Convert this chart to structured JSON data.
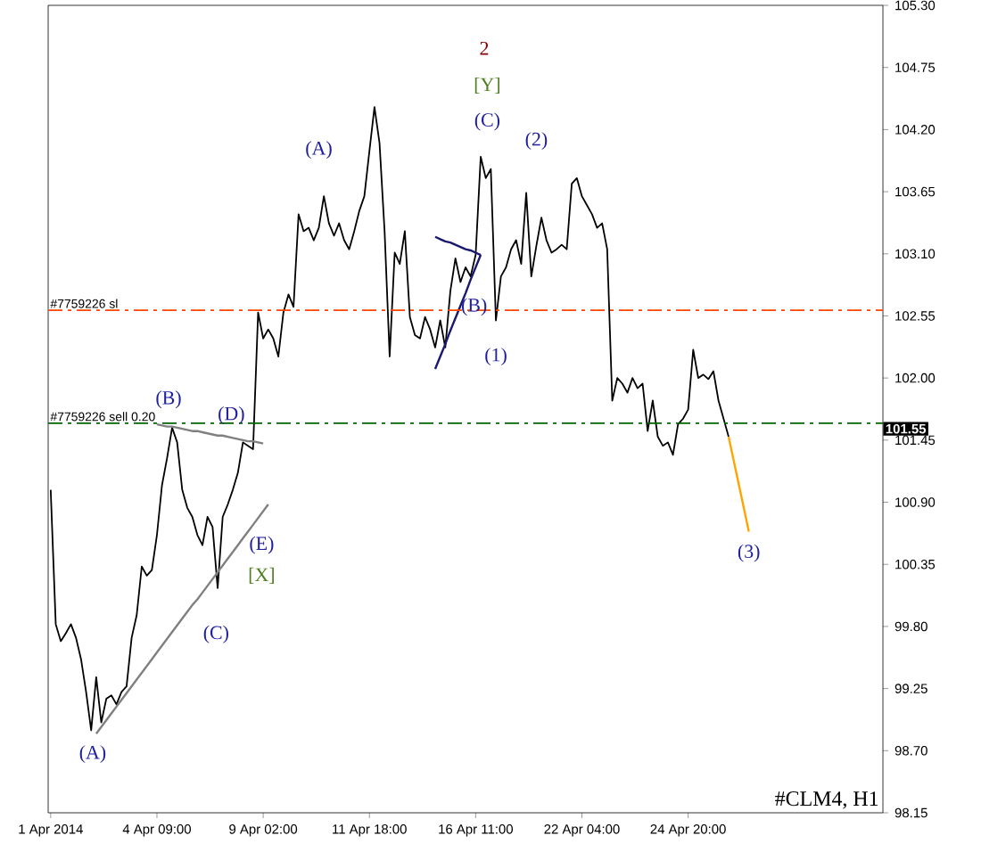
{
  "chart_data": {
    "type": "line",
    "ylim": [
      98.15,
      105.3
    ],
    "yticks": [
      98.15,
      {
        "value": 98.7,
        "label": "98.70"
      },
      99.25,
      {
        "value": 99.8,
        "label": "99.80"
      },
      100.35,
      {
        "value": 100.9,
        "label": "100.90"
      },
      101.45,
      {
        "value": 102.0,
        "label": "102.00"
      },
      102.55,
      {
        "value": 103.1,
        "label": "103.10"
      },
      103.65,
      {
        "value": 104.2,
        "label": "104.20"
      },
      104.75,
      {
        "value": 105.3,
        "label": "105.30"
      }
    ],
    "categories": [
      "1 Apr 2014",
      null,
      null,
      null,
      null,
      null,
      null,
      null,
      null,
      null,
      null,
      null,
      null,
      null,
      null,
      null,
      null,
      null,
      null,
      null,
      null,
      "4 Apr 09:00",
      null,
      null,
      null,
      null,
      null,
      null,
      null,
      null,
      null,
      null,
      null,
      null,
      null,
      null,
      null,
      null,
      null,
      null,
      null,
      null,
      "9 Apr 02:00",
      null,
      null,
      null,
      null,
      null,
      null,
      null,
      null,
      null,
      null,
      null,
      null,
      null,
      null,
      null,
      null,
      null,
      null,
      null,
      null,
      "11 Apr 18:00",
      null,
      null,
      null,
      null,
      null,
      null,
      null,
      null,
      null,
      null,
      null,
      null,
      null,
      null,
      null,
      null,
      null,
      null,
      null,
      null,
      "16 Apr 11:00",
      null,
      null,
      null,
      null,
      null,
      null,
      null,
      null,
      null,
      null,
      null,
      null,
      null,
      null,
      null,
      null,
      null,
      null,
      null,
      null,
      "22 Apr 04:00",
      null,
      null,
      null,
      null,
      null,
      null,
      null,
      null,
      null,
      null,
      null,
      null,
      null,
      null,
      null,
      null,
      null,
      null,
      null,
      null,
      "24 Apr 20:00",
      null,
      null,
      null,
      null,
      null,
      null,
      null,
      null,
      null,
      null,
      null,
      null,
      null,
      null,
      null,
      null,
      null,
      null,
      null,
      null,
      null,
      null,
      null,
      null,
      null,
      null,
      null,
      null,
      null,
      null,
      null,
      null,
      null,
      null,
      null,
      null,
      null,
      null
    ],
    "series": [
      {
        "color": "#000000",
        "values": [
          101.01,
          99.82,
          99.67,
          99.74,
          99.82,
          99.7,
          99.51,
          99.22,
          98.88,
          99.35,
          98.95,
          99.16,
          99.19,
          99.11,
          99.22,
          99.27,
          99.7,
          99.9,
          100.33,
          100.25,
          100.3,
          100.61,
          101.05,
          101.29,
          101.56,
          101.43,
          101.01,
          100.85,
          100.77,
          100.61,
          100.52,
          100.77,
          100.68,
          100.14,
          100.77,
          100.88,
          101.01,
          101.16,
          101.43,
          101.4,
          101.37,
          102.58,
          102.35,
          102.43,
          102.35,
          102.19,
          102.58,
          102.74,
          102.63,
          103.45,
          103.3,
          103.33,
          103.22,
          103.33,
          103.61,
          103.37,
          103.26,
          103.37,
          103.22,
          103.14,
          103.3,
          103.48,
          103.61,
          104.01,
          104.4,
          104.08,
          103.3,
          102.19,
          103.11,
          103.01,
          103.3,
          102.54,
          102.38,
          102.35,
          102.54,
          102.43,
          102.27,
          102.51,
          102.27,
          102.77,
          103.06,
          102.85,
          102.98,
          102.9,
          103.09,
          103.96,
          103.77,
          103.85,
          102.51,
          102.9,
          102.98,
          103.14,
          103.22,
          103.01,
          103.64,
          102.9,
          103.17,
          103.42,
          103.22,
          103.11,
          103.14,
          103.18,
          103.14,
          103.72,
          103.77,
          103.61,
          103.53,
          103.45,
          103.33,
          103.37,
          103.14,
          101.8,
          102.0,
          101.95,
          101.87,
          102.0,
          101.91,
          101.95,
          101.53,
          101.8,
          101.48,
          101.4,
          101.43,
          101.32,
          101.59,
          101.64,
          101.72,
          102.25,
          102.0,
          102.03,
          101.99,
          102.06,
          101.8,
          101.64,
          101.48,
          null,
          null,
          null,
          null,
          null,
          null,
          null,
          null,
          null,
          null,
          null,
          null,
          null,
          null,
          null,
          null,
          null,
          null,
          null,
          null,
          null,
          null,
          null,
          null,
          null,
          null,
          null,
          null,
          null,
          null
        ]
      },
      {
        "color": "#ffa500",
        "values": [
          null,
          null,
          null,
          null,
          null,
          null,
          null,
          null,
          null,
          null,
          null,
          null,
          null,
          null,
          null,
          null,
          null,
          null,
          null,
          null,
          null,
          null,
          null,
          null,
          null,
          null,
          null,
          null,
          null,
          null,
          null,
          null,
          null,
          null,
          null,
          null,
          null,
          null,
          null,
          null,
          null,
          null,
          null,
          null,
          null,
          null,
          null,
          null,
          null,
          null,
          null,
          null,
          null,
          null,
          null,
          null,
          null,
          null,
          null,
          null,
          null,
          null,
          null,
          null,
          null,
          null,
          null,
          null,
          null,
          null,
          null,
          null,
          null,
          null,
          null,
          null,
          null,
          null,
          null,
          null,
          null,
          null,
          null,
          null,
          null,
          null,
          null,
          null,
          null,
          null,
          null,
          null,
          null,
          null,
          null,
          null,
          null,
          null,
          null,
          null,
          null,
          null,
          null,
          null,
          null,
          null,
          null,
          null,
          null,
          null,
          null,
          null,
          null,
          null,
          null,
          null,
          null,
          null,
          null,
          null,
          null,
          null,
          null,
          null,
          null,
          null,
          null,
          null,
          null,
          null,
          null,
          null,
          null,
          null,
          101.48,
          101.27,
          101.06,
          100.85,
          100.64,
          null,
          null,
          null,
          null,
          null,
          null,
          null,
          null,
          null,
          null,
          null,
          null,
          null,
          null,
          null,
          null,
          null,
          null,
          null,
          null,
          null,
          null,
          null,
          null,
          null,
          null
        ]
      },
      {
        "color": "#808080",
        "values": [
          null,
          null,
          null,
          null,
          null,
          null,
          null,
          null,
          null,
          98.85,
          98.91,
          98.97,
          99.03,
          99.09,
          99.15,
          99.21,
          99.27,
          99.33,
          99.39,
          99.45,
          99.51,
          99.57,
          99.63,
          99.69,
          99.75,
          99.81,
          99.87,
          99.93,
          99.99,
          100.04,
          100.1,
          100.16,
          100.22,
          100.28,
          100.34,
          100.4,
          100.46,
          100.52,
          100.58,
          100.64,
          100.7,
          100.76,
          100.82,
          100.88,
          null,
          null,
          null,
          null,
          null,
          null,
          null,
          null,
          null,
          null,
          null,
          null,
          null,
          null,
          null,
          null,
          null,
          null,
          null,
          null,
          null,
          null,
          null,
          null,
          null,
          null,
          null,
          null,
          null,
          null,
          null,
          null,
          null,
          null,
          null,
          null,
          null,
          null,
          null,
          null,
          null,
          null,
          null,
          null,
          null,
          null,
          null,
          null,
          null,
          null,
          null,
          null,
          null,
          null,
          null,
          null,
          null,
          null,
          null,
          null,
          null,
          null,
          null,
          null,
          null,
          null,
          null,
          null,
          null,
          null,
          null,
          null,
          null,
          null,
          null,
          null,
          null,
          null,
          null,
          null,
          null,
          null,
          null,
          null,
          null,
          null,
          null,
          null,
          null,
          null,
          null,
          null,
          null,
          null,
          null,
          null,
          null,
          null,
          null,
          null,
          null,
          null,
          null,
          null,
          null,
          null,
          null,
          null,
          null,
          null,
          null,
          null,
          null,
          null,
          null,
          null,
          null,
          null,
          null,
          null,
          null
        ]
      },
      {
        "color": "#808080",
        "values": [
          null,
          null,
          null,
          null,
          null,
          null,
          null,
          null,
          null,
          null,
          null,
          null,
          null,
          null,
          null,
          null,
          null,
          null,
          null,
          null,
          null,
          101.59,
          101.58,
          101.57,
          101.57,
          101.56,
          101.55,
          101.54,
          101.53,
          101.53,
          101.52,
          101.51,
          101.5,
          101.49,
          101.49,
          101.48,
          101.47,
          101.46,
          101.45,
          101.44,
          101.44,
          101.43,
          101.42,
          null,
          null,
          null,
          null,
          null,
          null,
          null,
          null,
          null,
          null,
          null,
          null,
          null,
          null,
          null,
          null,
          null,
          null,
          null,
          null,
          null,
          null,
          null,
          null,
          null,
          null,
          null,
          null,
          null,
          null,
          null,
          null,
          null,
          null,
          null,
          null,
          null,
          null,
          null,
          null,
          null,
          null,
          null,
          null,
          null,
          null,
          null,
          null,
          null,
          null,
          null,
          null,
          null,
          null,
          null,
          null,
          null,
          null,
          null,
          null,
          null,
          null,
          null,
          null,
          null,
          null,
          null,
          null,
          null,
          null,
          null,
          null,
          null,
          null,
          null,
          null,
          null,
          null,
          null,
          null,
          null,
          null,
          null,
          null,
          null,
          null,
          null,
          null,
          null,
          null,
          null,
          null,
          null,
          null,
          null,
          null,
          null,
          null,
          null,
          null,
          null,
          null,
          null,
          null,
          null,
          null,
          null,
          null,
          null,
          null,
          null,
          null,
          null,
          null,
          null,
          null,
          null,
          null,
          null,
          null,
          null,
          null
        ]
      },
      {
        "color": "#191970",
        "values": [
          null,
          null,
          null,
          null,
          null,
          null,
          null,
          null,
          null,
          null,
          null,
          null,
          null,
          null,
          null,
          null,
          null,
          null,
          null,
          null,
          null,
          null,
          null,
          null,
          null,
          null,
          null,
          null,
          null,
          null,
          null,
          null,
          null,
          null,
          null,
          null,
          null,
          null,
          null,
          null,
          null,
          null,
          null,
          null,
          null,
          null,
          null,
          null,
          null,
          null,
          null,
          null,
          null,
          null,
          null,
          null,
          null,
          null,
          null,
          null,
          null,
          null,
          null,
          null,
          null,
          null,
          null,
          null,
          null,
          null,
          null,
          null,
          null,
          null,
          null,
          null,
          103.25,
          103.23,
          103.21,
          103.2,
          103.18,
          103.16,
          103.14,
          103.13,
          103.11,
          103.09,
          null,
          null,
          null,
          null,
          null,
          null,
          null,
          null,
          null,
          null,
          null,
          null,
          null,
          null,
          null,
          null,
          null,
          null,
          null,
          null,
          null,
          null,
          null,
          null,
          null,
          null,
          null,
          null,
          null,
          null,
          null,
          null,
          null,
          null,
          null,
          null,
          null,
          null,
          null,
          null,
          null,
          null,
          null,
          null,
          null,
          null,
          null,
          null,
          null,
          null,
          null,
          null,
          null,
          null,
          null,
          null,
          null,
          null,
          null,
          null,
          null,
          null,
          null,
          null,
          null,
          null,
          null,
          null,
          null,
          null,
          null,
          null,
          null,
          null,
          null,
          null,
          null,
          null,
          null
        ]
      },
      {
        "color": "#191970",
        "values": [
          null,
          null,
          null,
          null,
          null,
          null,
          null,
          null,
          null,
          null,
          null,
          null,
          null,
          null,
          null,
          null,
          null,
          null,
          null,
          null,
          null,
          null,
          null,
          null,
          null,
          null,
          null,
          null,
          null,
          null,
          null,
          null,
          null,
          null,
          null,
          null,
          null,
          null,
          null,
          null,
          null,
          null,
          null,
          null,
          null,
          null,
          null,
          null,
          null,
          null,
          null,
          null,
          null,
          null,
          null,
          null,
          null,
          null,
          null,
          null,
          null,
          null,
          null,
          null,
          null,
          null,
          null,
          null,
          null,
          null,
          null,
          null,
          null,
          null,
          null,
          null,
          102.08,
          102.19,
          102.3,
          102.42,
          102.53,
          102.64,
          102.75,
          102.87,
          102.98,
          103.09,
          null,
          null,
          null,
          null,
          null,
          null,
          null,
          null,
          null,
          null,
          null,
          null,
          null,
          null,
          null,
          null,
          null,
          null,
          null,
          null,
          null,
          null,
          null,
          null,
          null,
          null,
          null,
          null,
          null,
          null,
          null,
          null,
          null,
          null,
          null,
          null,
          null,
          null,
          null,
          null,
          null,
          null,
          null,
          null,
          null,
          null,
          null,
          null,
          null,
          null,
          null,
          null,
          null,
          null,
          null,
          null,
          null,
          null,
          null,
          null,
          null,
          null,
          null,
          null,
          null,
          null,
          null,
          null,
          null,
          null,
          null,
          null,
          null,
          null,
          null,
          null,
          null,
          null,
          null
        ]
      }
    ],
    "ref_lines": [
      {
        "axis": "y",
        "value": 102.6,
        "label": "#7759226 sl",
        "color": "#ff4500",
        "line_style": "dashdot"
      },
      {
        "axis": "y",
        "value": 101.6,
        "label": "#7759226 sell 0.20",
        "color": "#006400",
        "line_style": "dashdot"
      }
    ],
    "annotations": [
      "(A)",
      "(B)",
      "(C)",
      "(D)",
      "(E)",
      "[X]",
      "(A)",
      "(B)",
      "(C)",
      "[Y]",
      "2",
      "(1)",
      "(2)",
      "(3)",
      "101.55",
      "#CLM4, H1"
    ]
  }
}
